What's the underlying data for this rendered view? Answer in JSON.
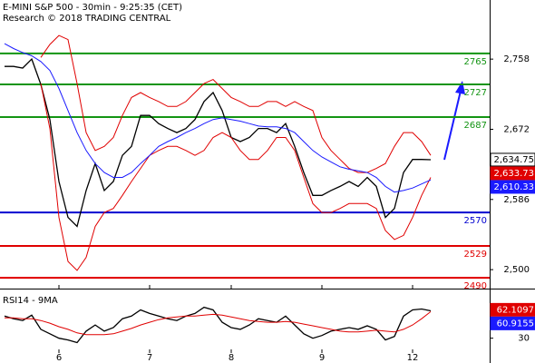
{
  "chart_data": [
    {
      "type": "line",
      "title": "E-MINI S&P 500 - 30min - 9:25:35 (CET)",
      "subtitle": "Research © 2018 TRADING CENTRAL",
      "categories": [
        null,
        null,
        null,
        null,
        null,
        null,
        "6",
        null,
        null,
        null,
        null,
        null,
        null,
        null,
        null,
        null,
        "7",
        null,
        null,
        null,
        null,
        null,
        null,
        null,
        null,
        "8",
        null,
        null,
        null,
        null,
        null,
        null,
        null,
        null,
        null,
        "9",
        null,
        null,
        null,
        null,
        null,
        null,
        null,
        null,
        null,
        "12",
        null,
        null
      ],
      "series": [
        {
          "color": "#000000",
          "values": [
            2749,
            2749,
            2747,
            2758,
            2727,
            2684,
            2608,
            2564,
            2553,
            2597,
            2630,
            2597,
            2608,
            2640,
            2651,
            2689,
            2689,
            2679,
            2673,
            2668,
            2673,
            2684,
            2706,
            2717,
            2695,
            2662,
            2657,
            2662,
            2673,
            2673,
            2668,
            2679,
            2651,
            2619,
            2591,
            2591,
            2597,
            2602,
            2608,
            2602,
            2613,
            2602,
            2564,
            2575,
            2619,
            2635,
            2635,
            2634.75
          ]
        },
        {
          "color": "#e00000",
          "values": [
            null,
            null,
            null,
            null,
            2760,
            2776,
            2787,
            2782,
            2728,
            2668,
            2646,
            2651,
            2662,
            2689,
            2711,
            2717,
            2711,
            2706,
            2700,
            2700,
            2706,
            2717,
            2728,
            2733,
            2722,
            2711,
            2706,
            2700,
            2700,
            2706,
            2706,
            2700,
            2706,
            2700,
            2695,
            2662,
            2646,
            2635,
            2624,
            2619,
            2619,
            2624,
            2630,
            2651,
            2668,
            2668,
            2657,
            2640
          ]
        },
        {
          "color": "#e00000",
          "values": [
            null,
            null,
            null,
            null,
            2728,
            2673,
            2564,
            2510,
            2499,
            2515,
            2553,
            2570,
            2575,
            2591,
            2608,
            2624,
            2640,
            2646,
            2651,
            2651,
            2646,
            2640,
            2646,
            2662,
            2668,
            2662,
            2646,
            2635,
            2635,
            2646,
            2662,
            2662,
            2646,
            2613,
            2581,
            2570,
            2570,
            2575,
            2581,
            2581,
            2581,
            2575,
            2548,
            2537,
            2542,
            2564,
            2591,
            2613
          ]
        },
        {
          "color": "#1a1aff",
          "values": [
            2777,
            2771,
            2766,
            2762,
            2755,
            2744,
            2722,
            2695,
            2668,
            2646,
            2630,
            2619,
            2613,
            2613,
            2619,
            2630,
            2640,
            2651,
            2657,
            2662,
            2668,
            2673,
            2679,
            2684,
            2686,
            2684,
            2682,
            2679,
            2676,
            2675,
            2675,
            2673,
            2668,
            2657,
            2646,
            2638,
            2632,
            2626,
            2623,
            2621,
            2619,
            2613,
            2602,
            2595,
            2597,
            2600,
            2605,
            2610
          ]
        }
      ],
      "levels": [
        {
          "value": 2765,
          "color": "#139413"
        },
        {
          "value": 2727,
          "color": "#139413"
        },
        {
          "value": 2687,
          "color": "#139413"
        },
        {
          "value": 2570,
          "color": "#0000d0"
        },
        {
          "value": 2529,
          "color": "#e00000"
        },
        {
          "value": 2490,
          "color": "#e00000"
        }
      ],
      "price_labels": [
        {
          "value": 2634.75,
          "label": "2,634.75",
          "color": "#ffffff",
          "text_color": "#000000"
        },
        {
          "value": 2633.73,
          "label": "2,633.73",
          "color": "#e00000",
          "text_color": "#ffffff"
        },
        {
          "value": 2610.33,
          "label": "2,610.33",
          "color": "#1a1aff",
          "text_color": "#ffffff"
        }
      ],
      "ylim": [
        2479,
        2826
      ],
      "yticks": [
        {
          "value": 2758,
          "label": "2,758"
        },
        {
          "value": 2672,
          "label": "2,672"
        },
        {
          "value": 2586,
          "label": "2,586"
        },
        {
          "value": 2500,
          "label": "2,500"
        }
      ]
    },
    {
      "type": "line",
      "title": "RSI14 - 9MA",
      "series": [
        {
          "color": "#000000",
          "values": [
            55,
            52,
            50,
            56,
            40,
            35,
            30,
            28,
            25,
            38,
            45,
            38,
            42,
            52,
            55,
            62,
            58,
            55,
            52,
            50,
            55,
            58,
            65,
            62,
            48,
            42,
            40,
            45,
            52,
            50,
            48,
            55,
            45,
            35,
            30,
            33,
            38,
            40,
            42,
            40,
            44,
            40,
            28,
            32,
            55,
            62,
            63,
            61
          ]
        },
        {
          "color": "#e00000",
          "values": [
            53,
            53,
            52,
            52,
            50,
            47,
            43,
            40,
            36,
            34,
            34,
            34,
            35,
            38,
            41,
            45,
            48,
            51,
            53,
            54,
            55,
            55,
            56,
            57,
            56,
            54,
            52,
            50,
            49,
            48,
            48,
            49,
            48,
            46,
            44,
            42,
            40,
            38,
            37,
            37,
            38,
            39,
            38,
            37,
            40,
            45,
            52,
            60
          ]
        }
      ],
      "price_labels": [
        {
          "value": 62.1097,
          "label": "62.1097",
          "color": "#e00000",
          "text_color": "#ffffff"
        },
        {
          "value": 60.9155,
          "label": "60.9155",
          "color": "#1a1aff",
          "text_color": "#ffffff"
        }
      ],
      "ylim": [
        4,
        82
      ],
      "yticks": [
        30
      ]
    }
  ]
}
